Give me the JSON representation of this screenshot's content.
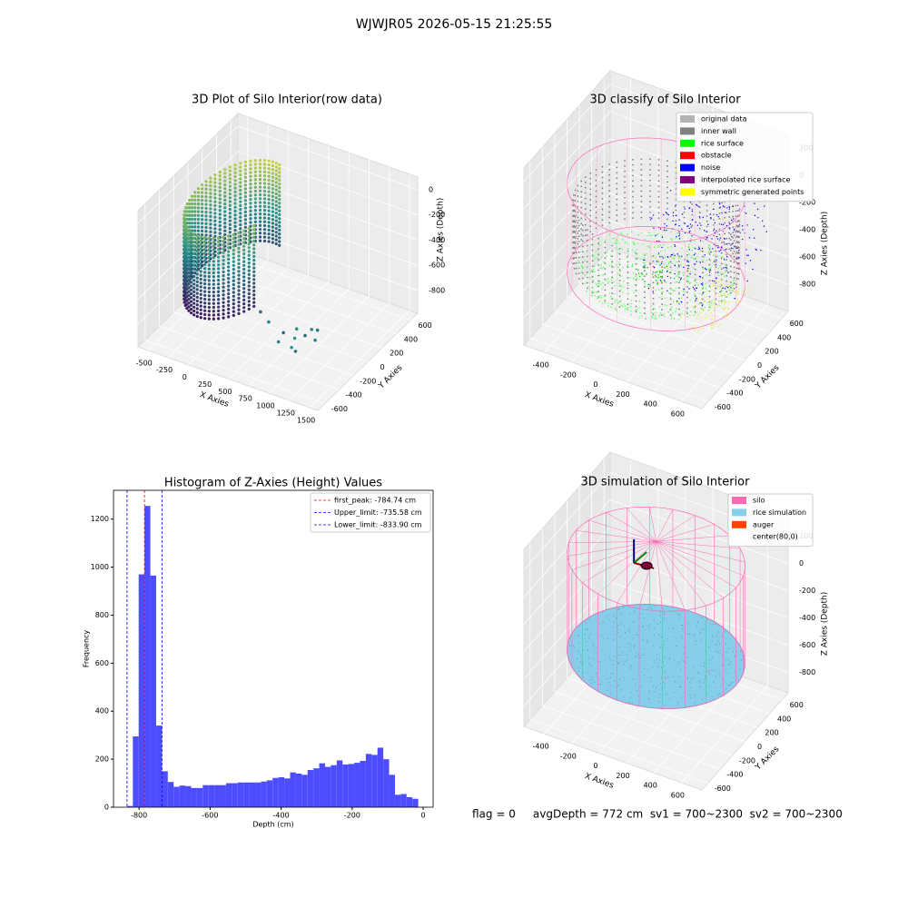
{
  "title": "WJWJR05 2026-05-15 21:25:55",
  "status_text": "flag = 0     avgDepth = 772 cm  sv1 = 700~2300  sv2 = 700~2300",
  "chart_data": [
    {
      "type": "scatter3d",
      "title": "3D Plot of Silo Interior(row data)",
      "xlabel": "X Axies",
      "ylabel": "Y Axies",
      "zlabel": "Z Axies (Depth)",
      "xlim": [
        -620,
        1600
      ],
      "ylim": [
        -700,
        700
      ],
      "zlim": [
        -980,
        100
      ],
      "xticks": [
        -500,
        -250,
        0,
        250,
        500,
        750,
        1000,
        1250,
        1500
      ],
      "yticks": [
        -600,
        -400,
        -200,
        0,
        200,
        400,
        600
      ],
      "zticks": [
        -800,
        -600,
        -400,
        -200,
        0
      ]
    },
    {
      "type": "scatter3d",
      "title": "3D classify of Silo Interior",
      "xlabel": "X Axies",
      "ylabel": "Y Axies",
      "zlabel": "Z Axies (Depth)",
      "xlim": [
        -550,
        750
      ],
      "ylim": [
        -700,
        700
      ],
      "zlim": [
        -1000,
        300
      ],
      "xticks": [
        -400,
        -200,
        0,
        200,
        400,
        600
      ],
      "yticks": [
        -600,
        -400,
        -200,
        0,
        200,
        400,
        600
      ],
      "zticks": [
        -800,
        -600,
        -400,
        -200,
        0,
        200
      ],
      "legend": [
        {
          "name": "original data",
          "color": "#b3b3b3"
        },
        {
          "name": "inner wall",
          "color": "#808080"
        },
        {
          "name": "rice surface",
          "color": "#00ff00"
        },
        {
          "name": "obstacle",
          "color": "#ff0000"
        },
        {
          "name": "noise",
          "color": "#0000ff"
        },
        {
          "name": "interpolated rice surface",
          "color": "#800080"
        },
        {
          "name": "symmetric generated points",
          "color": "#ffff00"
        }
      ],
      "legend_position": "upper right"
    },
    {
      "type": "histogram",
      "title": "Histogram of Z-Axies (Height) Values",
      "xlabel": "Depth (cm)",
      "ylabel": "Frequency",
      "color": "#4d4dff",
      "xlim": [
        -872,
        28
      ],
      "ylim": [
        0,
        1320
      ],
      "xticks": [
        -800,
        -600,
        -400,
        -200,
        0
      ],
      "yticks": [
        0,
        200,
        400,
        600,
        800,
        1000,
        1200
      ],
      "bins": [
        -833.9,
        -817.5,
        -801.1,
        -784.7,
        -768.3,
        -751.9,
        -735.5,
        -719.1,
        -702.7,
        -686.3,
        -669.9,
        -653.5,
        -637.1,
        -620.7,
        -604.3,
        -587.9,
        -571.5,
        -555.1,
        -538.7,
        -522.3,
        -505.9,
        -489.5,
        -473.1,
        -456.7,
        -440.3,
        -423.9,
        -407.5,
        -391.1,
        -374.7,
        -358.3,
        -341.9,
        -325.5,
        -309.1,
        -292.7,
        -276.3,
        -259.9,
        -243.5,
        -227.1,
        -210.7,
        -194.3,
        -177.9,
        -161.5,
        -145.1,
        -128.7,
        -112.3,
        -95.9,
        -79.5,
        -63.1,
        -46.7,
        -30.3,
        -13.9
      ],
      "counts": [
        5,
        295,
        970,
        1255,
        965,
        340,
        150,
        105,
        85,
        90,
        88,
        80,
        80,
        92,
        92,
        92,
        92,
        100,
        100,
        103,
        103,
        103,
        103,
        107,
        112,
        122,
        125,
        120,
        145,
        140,
        135,
        155,
        162,
        183,
        168,
        175,
        195,
        178,
        180,
        185,
        193,
        222,
        218,
        248,
        200,
        135,
        52,
        55,
        42,
        35
      ],
      "lines": [
        {
          "label": "first_peak: -784.74 cm",
          "value": -784.74,
          "color": "#ff0000"
        },
        {
          "label": "Upper_limit: -735.58 cm",
          "value": -735.58,
          "color": "#0000ff"
        },
        {
          "label": "Lower_limit: -833.90 cm",
          "value": -833.9,
          "color": "#0000ff"
        }
      ],
      "legend_position": "upper right"
    },
    {
      "type": "scatter3d",
      "title": "3D simulation of Silo Interior",
      "xlabel": "X Axies",
      "ylabel": "Y Axies",
      "zlabel": "Z Axies (Depth)",
      "xlim": [
        -550,
        750
      ],
      "ylim": [
        -700,
        700
      ],
      "zlim": [
        -950,
        350
      ],
      "xticks": [
        -400,
        -200,
        0,
        200,
        400,
        600
      ],
      "yticks": [
        -600,
        -400,
        -200,
        0,
        200,
        400,
        600
      ],
      "zticks": [
        -800,
        -600,
        -400,
        -200,
        0,
        200
      ],
      "legend": [
        {
          "name": "silo",
          "color": "#ff69b4"
        },
        {
          "name": "rice simulation",
          "color": "#87ceeb"
        },
        {
          "name": "auger",
          "color": "#ff4500"
        },
        {
          "name": "center(80,0)",
          "color": "#ffffff"
        }
      ],
      "legend_position": "upper right"
    }
  ]
}
